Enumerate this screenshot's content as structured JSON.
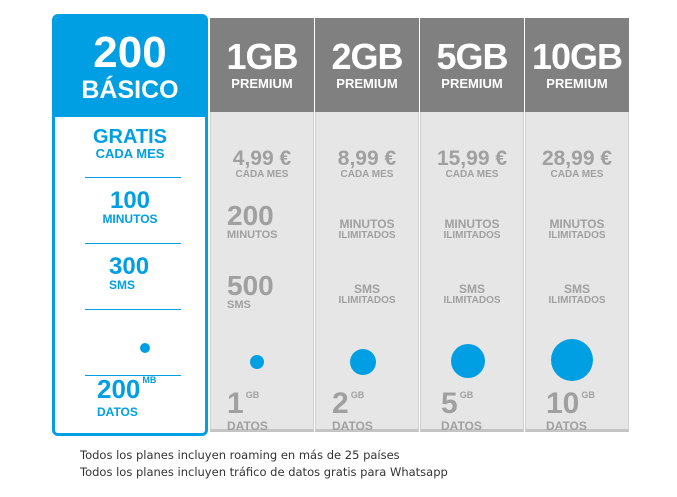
{
  "plans": [
    {
      "name": "200",
      "sub": "BÁSICO",
      "price": "GRATIS",
      "price_unit": "CADA MES",
      "minutes_num": "100",
      "minutes_label": "MINUTOS",
      "sms_num": "300",
      "sms_label": "SMS",
      "data_num": "200",
      "data_unit": "MB",
      "data_label": "DATOS"
    },
    {
      "name": "1GB",
      "sub": "PREMIUM",
      "price": "4,99 €",
      "price_unit": "CADA MES",
      "minutes_num": "200",
      "minutes_label": "MINUTOS",
      "sms_num": "500",
      "sms_label": "SMS",
      "data_num": "1",
      "data_unit": "GB",
      "data_label": "DATOS"
    },
    {
      "name": "2GB",
      "sub": "PREMIUM",
      "price": "8,99 €",
      "price_unit": "CADA MES",
      "minutes_line1": "MINUTOS",
      "minutes_line2": "ILIMITADOS",
      "sms_line1": "SMS",
      "sms_line2": "ILIMITADOS",
      "data_num": "2",
      "data_unit": "GB",
      "data_label": "DATOS"
    },
    {
      "name": "5GB",
      "sub": "PREMIUM",
      "price": "15,99 €",
      "price_unit": "CADA MES",
      "minutes_line1": "MINUTOS",
      "minutes_line2": "ILIMITADOS",
      "sms_line1": "SMS",
      "sms_line2": "ILIMITADOS",
      "data_num": "5",
      "data_unit": "GB",
      "data_label": "DATOS"
    },
    {
      "name": "10GB",
      "sub": "PREMIUM",
      "price": "28,99 €",
      "price_unit": "CADA MES",
      "minutes_line1": "MINUTOS",
      "minutes_line2": "ILIMITADOS",
      "sms_line1": "SMS",
      "sms_line2": "ILIMITADOS",
      "data_num": "10",
      "data_unit": "GB",
      "data_label": "DATOS"
    }
  ],
  "footer": {
    "line1": "Todos los planes incluyen roaming en más de 25 países",
    "line2": "Todos los planes incluyen tráfico de datos gratis para Whatsapp"
  },
  "colors": {
    "accent": "#009fe3",
    "header_grey": "#808080",
    "cell_grey": "#e6e6e6",
    "text_grey": "#a0a0a0"
  }
}
